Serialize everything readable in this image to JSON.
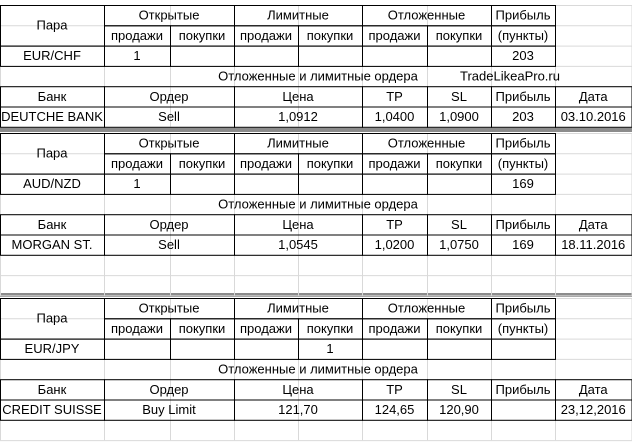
{
  "blocks": [
    {
      "header_top": [
        "Пара",
        "Открытые",
        "Лимитные",
        "Отложенные",
        "Прибыль"
      ],
      "header_sub": [
        "продажи",
        "покупки",
        "продажи",
        "покупки",
        "продажи",
        "покупки",
        "(пункты)"
      ],
      "position": {
        "pair": "EUR/CHF",
        "cells": [
          1,
          null,
          null,
          null,
          null,
          null
        ],
        "profit": 203
      },
      "orders": {
        "title": "Отложенные и лимитные ордера",
        "watermark": "TradeLikeaPro.ru",
        "header": [
          "Банк",
          "Ордер",
          "Цена",
          "TP",
          "SL",
          "Прибыль",
          "Дата"
        ],
        "row": [
          "DEUTCHE BANK",
          "Sell",
          "1,0912",
          "1,0400",
          "1,0900",
          203,
          "03.10.2016"
        ]
      }
    },
    {
      "header_top": [
        "Пара",
        "Открытые",
        "Лимитные",
        "Отложенные",
        "Прибыль"
      ],
      "header_sub": [
        "продажи",
        "покупки",
        "продажи",
        "покупки",
        "продажи",
        "покупки",
        "(пункты)"
      ],
      "position": {
        "pair": "AUD/NZD",
        "cells": [
          1,
          null,
          null,
          null,
          null,
          null
        ],
        "profit": 169
      },
      "orders": {
        "title": "Отложенные и лимитные ордера",
        "header": [
          "Банк",
          "Ордер",
          "Цена",
          "TP",
          "SL",
          "Прибыль",
          "Дата"
        ],
        "row": [
          "MORGAN ST.",
          "Sell",
          "1,0545",
          "1,0200",
          "1,0750",
          169,
          "18.11.2016"
        ]
      }
    },
    {
      "header_top": [
        "Пара",
        "Открытые",
        "Лимитные",
        "Отложенные",
        "Прибыль"
      ],
      "header_sub": [
        "продажи",
        "покупки",
        "продажи",
        "покупки",
        "продажи",
        "покупки",
        "(пункты)"
      ],
      "position": {
        "pair": "EUR/JPY",
        "cells": [
          null,
          null,
          null,
          1,
          null,
          null
        ],
        "profit": null
      },
      "orders": {
        "title": "Отложенные и лимитные ордера",
        "header": [
          "Банк",
          "Ордер",
          "Цена",
          "TP",
          "SL",
          "Прибыль",
          "Дата"
        ],
        "row": [
          "CREDIT SUISSE",
          "Buy Limit",
          "121,70",
          "124,65",
          "120,90",
          null,
          "23,12,2016"
        ]
      }
    }
  ]
}
